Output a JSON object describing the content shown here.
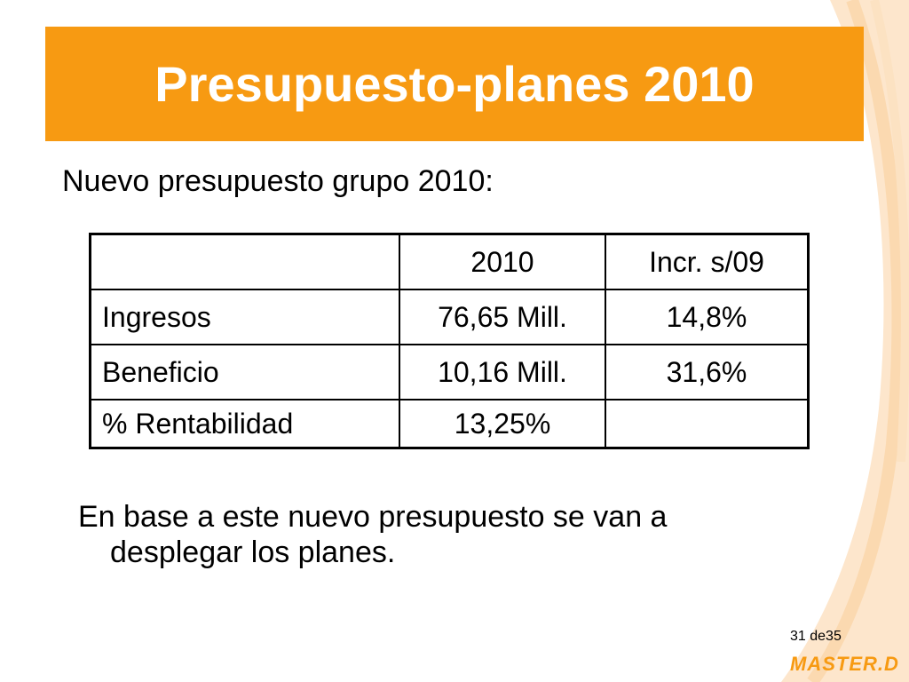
{
  "slide": {
    "title": "Presupuesto-planes 2010",
    "intro": "Nuevo presupuesto grupo 2010:",
    "table": {
      "header": [
        "",
        "2010",
        "Incr. s/09"
      ],
      "rows": [
        [
          "Ingresos",
          "76,65 Mill.",
          "14,8%"
        ],
        [
          "Beneficio",
          "10,16 Mill.",
          "31,6%"
        ],
        [
          "% Rentabilidad",
          "13,25%",
          ""
        ]
      ]
    },
    "body_line1": "En base a este nuevo presupuesto se van a",
    "body_line2": "desplegar los planes.",
    "page_number": "31 de35",
    "logo_text": "MASTER.D"
  },
  "colors": {
    "title_bar": "#f79a12",
    "title_text": "#ffffff",
    "decor_curve": "#fbd9b0"
  }
}
